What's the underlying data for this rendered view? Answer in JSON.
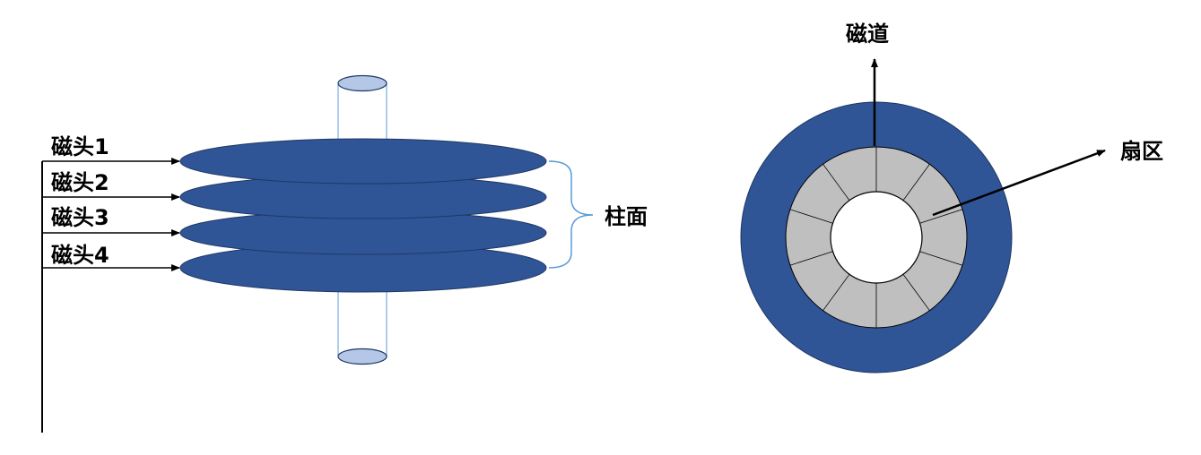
{
  "left_diagram": {
    "heads": [
      {
        "label": "磁头1"
      },
      {
        "label": "磁头2"
      },
      {
        "label": "磁头3"
      },
      {
        "label": "磁头4"
      }
    ],
    "cylinder_label": "柱面"
  },
  "right_diagram": {
    "track_label": "磁道",
    "sector_label": "扇区",
    "sector_count": 10
  },
  "colors": {
    "platter": "#2f5597",
    "platter_edge": "#1f3864",
    "spindle_cap": "#b4c7e7",
    "sector_fill": "#bfbfbf",
    "bracket": "#5b9bd5",
    "line": "#000000"
  }
}
